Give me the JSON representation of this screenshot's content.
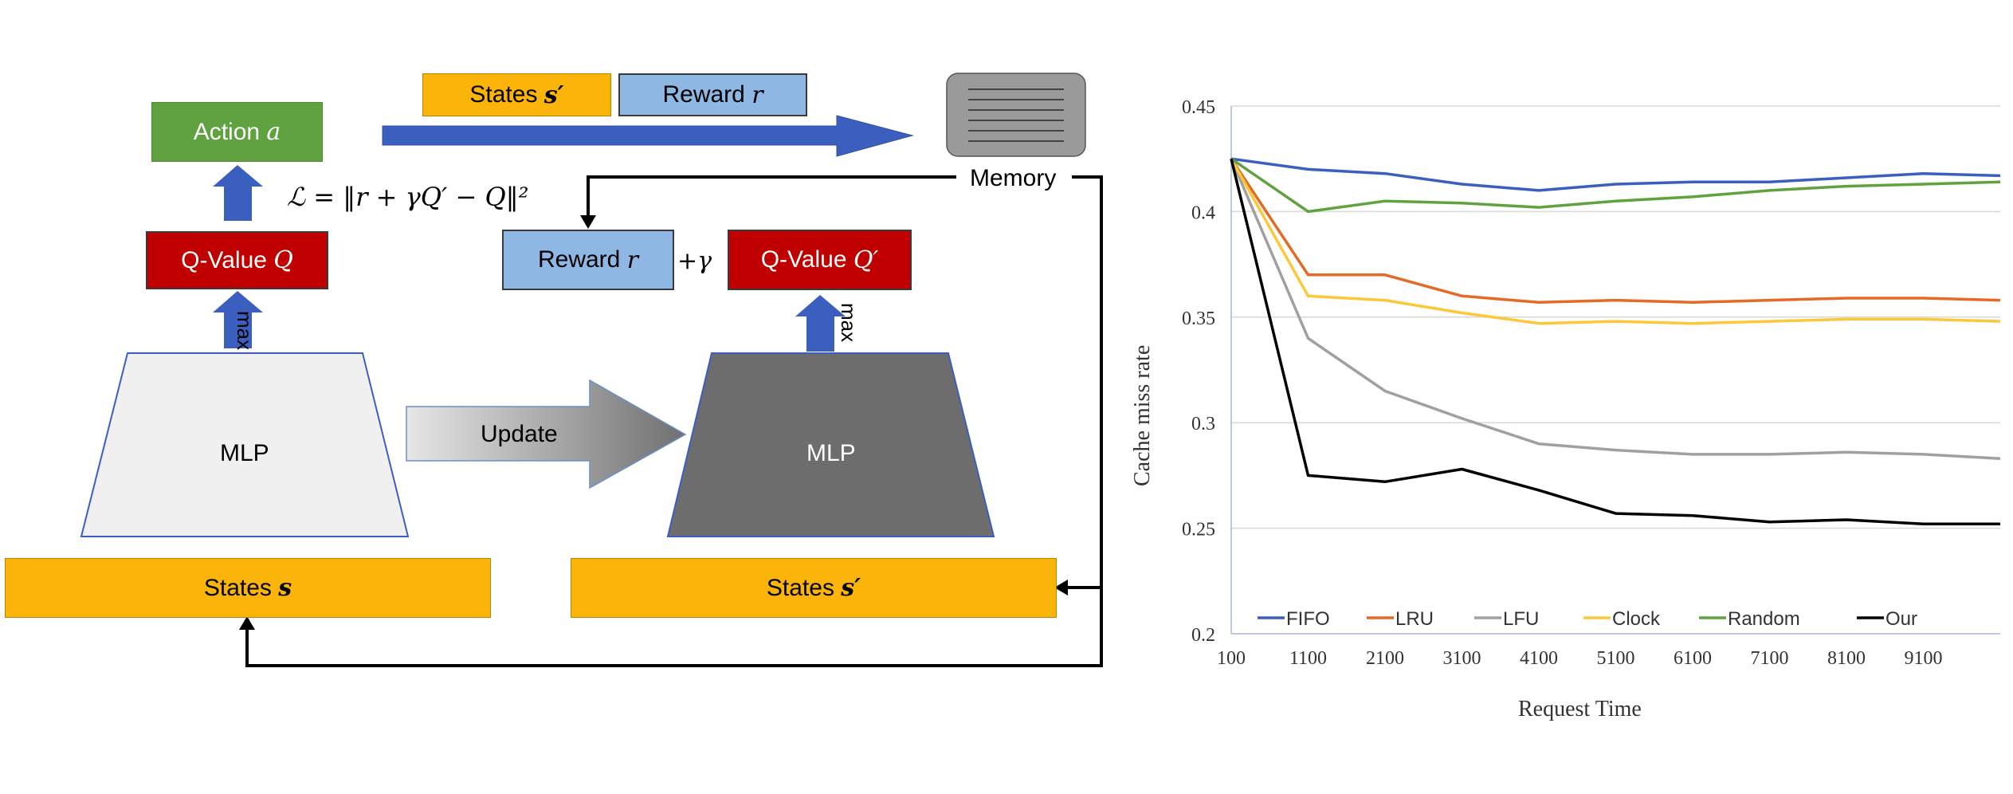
{
  "diagram": {
    "action": {
      "label": "Action",
      "symbol": "a"
    },
    "loss": "ℒ = ‖r + γQ′ − Q‖²",
    "qvalue_left": {
      "label": "Q-Value",
      "symbol": "Q"
    },
    "qvalue_right": {
      "label": "Q-Value",
      "symbol": "Q′"
    },
    "reward_top": {
      "label": "Reward",
      "symbol": "r"
    },
    "reward_mid": {
      "label": "Reward",
      "symbol": "r"
    },
    "states_top": {
      "label": "States",
      "symbol": "s′"
    },
    "states_left": {
      "label": "States",
      "symbol": "s"
    },
    "states_right": {
      "label": "States",
      "symbol": "s′"
    },
    "plus_gamma": "+γ",
    "max_left": "max",
    "max_right": "max",
    "mlp_left": "MLP",
    "mlp_right": "MLP",
    "update": "Update",
    "memory": "Memory",
    "colors": {
      "yellow": "#fbb40a",
      "lightblue": "#8eb8e3",
      "green": "#5fa23f",
      "red": "#c00000",
      "blue": "#3a5fbf",
      "dark_mlp": "#6d6d6d",
      "light_mlp": "#f0f0f0"
    }
  },
  "chart_data": {
    "type": "line",
    "xlabel": "Request Time",
    "ylabel": "Cache miss rate",
    "ylim": [
      0.2,
      0.45
    ],
    "yticks": [
      "0.45",
      "0.4",
      "0.35",
      "0.3",
      "0.25",
      "0.2"
    ],
    "xticks": [
      "100",
      "1100",
      "2100",
      "3100",
      "4100",
      "5100",
      "6100",
      "7100",
      "8100",
      "9100"
    ],
    "grid": true,
    "legend_position": "bottom",
    "x": [
      100,
      1100,
      2100,
      3100,
      4100,
      5100,
      6100,
      7100,
      8100,
      9100,
      10100
    ],
    "series": [
      {
        "name": "FIFO",
        "color": "#3a5fbf",
        "values": [
          0.425,
          0.42,
          0.418,
          0.413,
          0.41,
          0.413,
          0.414,
          0.414,
          0.416,
          0.418,
          0.417
        ]
      },
      {
        "name": "LRU",
        "color": "#e36b26",
        "values": [
          0.425,
          0.37,
          0.37,
          0.36,
          0.357,
          0.358,
          0.357,
          0.358,
          0.359,
          0.359,
          0.358
        ]
      },
      {
        "name": "LFU",
        "color": "#a0a0a0",
        "values": [
          0.425,
          0.34,
          0.315,
          0.302,
          0.29,
          0.287,
          0.285,
          0.285,
          0.286,
          0.285,
          0.283
        ]
      },
      {
        "name": "Clock",
        "color": "#fcc83a",
        "values": [
          0.425,
          0.36,
          0.358,
          0.352,
          0.347,
          0.348,
          0.347,
          0.348,
          0.349,
          0.349,
          0.348
        ]
      },
      {
        "name": "Random",
        "color": "#5fa23f",
        "values": [
          0.425,
          0.4,
          0.405,
          0.404,
          0.402,
          0.405,
          0.407,
          0.41,
          0.412,
          0.413,
          0.414
        ]
      },
      {
        "name": "Our",
        "color": "#000000",
        "values": [
          0.425,
          0.275,
          0.272,
          0.278,
          0.268,
          0.257,
          0.256,
          0.253,
          0.254,
          0.252,
          0.252
        ]
      }
    ]
  }
}
